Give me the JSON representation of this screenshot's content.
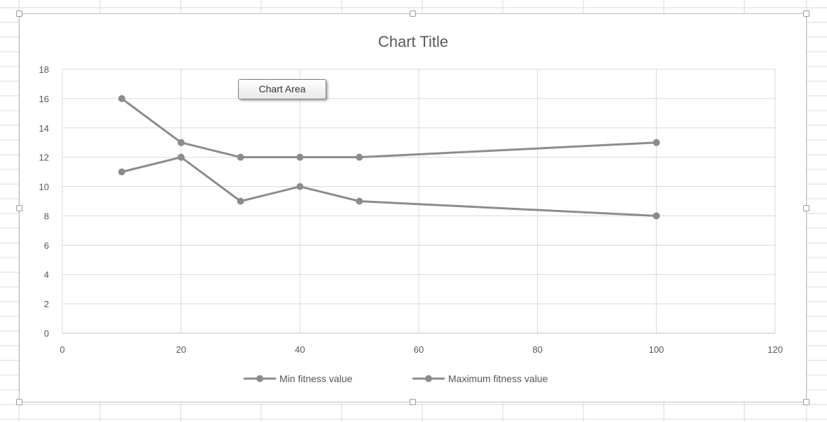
{
  "tooltip": {
    "text": "Chart Area"
  },
  "chart_data": {
    "type": "line",
    "title": "Chart Title",
    "xlabel": "",
    "ylabel": "",
    "xlim": [
      0,
      120
    ],
    "ylim": [
      0,
      18
    ],
    "xticks": [
      0,
      20,
      40,
      60,
      80,
      100,
      120
    ],
    "yticks": [
      0,
      2,
      4,
      6,
      8,
      10,
      12,
      14,
      16,
      18
    ],
    "grid": true,
    "legend_position": "bottom",
    "series": [
      {
        "name": "Min fitness value",
        "color": "#8c8c8c",
        "x": [
          10,
          20,
          30,
          40,
          50,
          100
        ],
        "values": [
          11,
          12,
          9,
          10,
          9,
          8
        ]
      },
      {
        "name": "Maximum fitness value",
        "color": "#8c8c8c",
        "x": [
          10,
          20,
          30,
          40,
          50,
          100
        ],
        "values": [
          16,
          13,
          12,
          12,
          12,
          13
        ]
      }
    ]
  }
}
